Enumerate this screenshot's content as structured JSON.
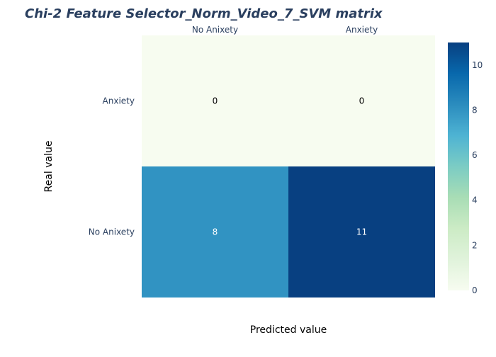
{
  "chart_data": {
    "type": "heatmap",
    "title": "Chi-2 Feature Selector_Norm_Video_7_SVM matrix",
    "xlabel": "Predicted value",
    "ylabel": "Real value",
    "x_categories": [
      "No Anixety",
      "Anxiety"
    ],
    "y_categories": [
      "Anxiety",
      "No Anixety"
    ],
    "z": [
      [
        0,
        0
      ],
      [
        8,
        11
      ]
    ],
    "zlim": [
      0,
      11
    ],
    "colorbar": {
      "ticks": [
        0,
        2,
        4,
        6,
        8,
        10
      ]
    },
    "colorscale": "GnBu",
    "x_axis_position": "top",
    "legend": "colorbar-right"
  },
  "colors": {
    "title": "#2a3f5f",
    "tick": "#2a3f5f",
    "scale": [
      "#f7fcf0",
      "#e0f3db",
      "#ccebc5",
      "#a8ddb5",
      "#7bccc4",
      "#4eb3d3",
      "#2b8cbe",
      "#0868ac",
      "#084081"
    ]
  }
}
